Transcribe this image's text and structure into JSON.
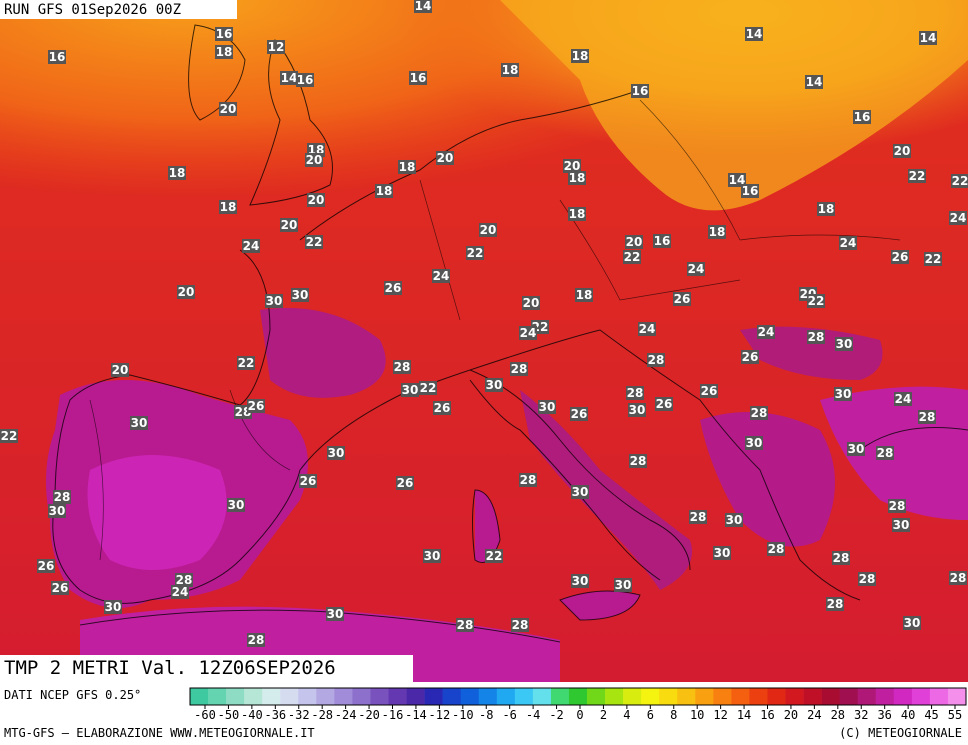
{
  "header": {
    "run": "RUN GFS 01Sep2026 00Z",
    "field": "TMP 2 METRI Val. 12Z06SEP2026"
  },
  "footer": {
    "source": "DATI NCEP GFS 0.25°",
    "credit": "MTG-GFS — ELABORAZIONE WWW.METEOGIORNALE.IT",
    "copyright": "(C) METEOGIORNALE"
  },
  "colorbar": {
    "ticks": [
      -60,
      -50,
      -40,
      -36,
      -32,
      -28,
      -24,
      -20,
      -16,
      -14,
      -12,
      -10,
      -8,
      -6,
      -4,
      -2,
      0,
      2,
      4,
      6,
      8,
      10,
      12,
      14,
      16,
      20,
      24,
      28,
      32,
      36,
      40,
      45,
      55
    ],
    "colors": [
      "#3fc9a0",
      "#63d3b0",
      "#8fdcc4",
      "#b6e6d6",
      "#d5ecec",
      "#d6dcf0",
      "#c4c4ec",
      "#b4a8e2",
      "#a08cd8",
      "#8c70cc",
      "#7a52be",
      "#6438b0",
      "#4a28a8",
      "#2828b4",
      "#1844cc",
      "#1060dc",
      "#1484e8",
      "#20a8f0",
      "#3cc8f4",
      "#64e0ec",
      "#40d870",
      "#30c830",
      "#70d818",
      "#a8e410",
      "#d8ec10",
      "#f4f410",
      "#f8dc10",
      "#f8c010",
      "#f8a010",
      "#f88010",
      "#f46010",
      "#ec4010",
      "#e02814",
      "#d41820",
      "#c01028",
      "#a80c30",
      "#a01050",
      "#b01878",
      "#c020a0",
      "#d028c0",
      "#e040d8",
      "#ec68e4",
      "#f490ec"
    ]
  },
  "stations": [
    16,
    18,
    12,
    16,
    14,
    16,
    16,
    18,
    18,
    14,
    14,
    14,
    20,
    16,
    14,
    16,
    18,
    20,
    20,
    18,
    20,
    18,
    18,
    20,
    22,
    22,
    14,
    16,
    18,
    20,
    18,
    18,
    18,
    24,
    20,
    20,
    22,
    24,
    20,
    16,
    18,
    24,
    22,
    22,
    26,
    22,
    24,
    24,
    26,
    20,
    30,
    30,
    18,
    26,
    20,
    22,
    20,
    22,
    24,
    24,
    24,
    28,
    30,
    28,
    26,
    22,
    28,
    28,
    20,
    30,
    22,
    30,
    28,
    26,
    30,
    24,
    28,
    26,
    26,
    30,
    26,
    30,
    26,
    28,
    28,
    30,
    22,
    30,
    30,
    28,
    30,
    28,
    26,
    26,
    28,
    30,
    28,
    30,
    30,
    28,
    30,
    28,
    30,
    30,
    28,
    28,
    30,
    22,
    26,
    28,
    30,
    30,
    28,
    24,
    26,
    28,
    30,
    28,
    30,
    28,
    28,
    30,
    28
  ]
}
